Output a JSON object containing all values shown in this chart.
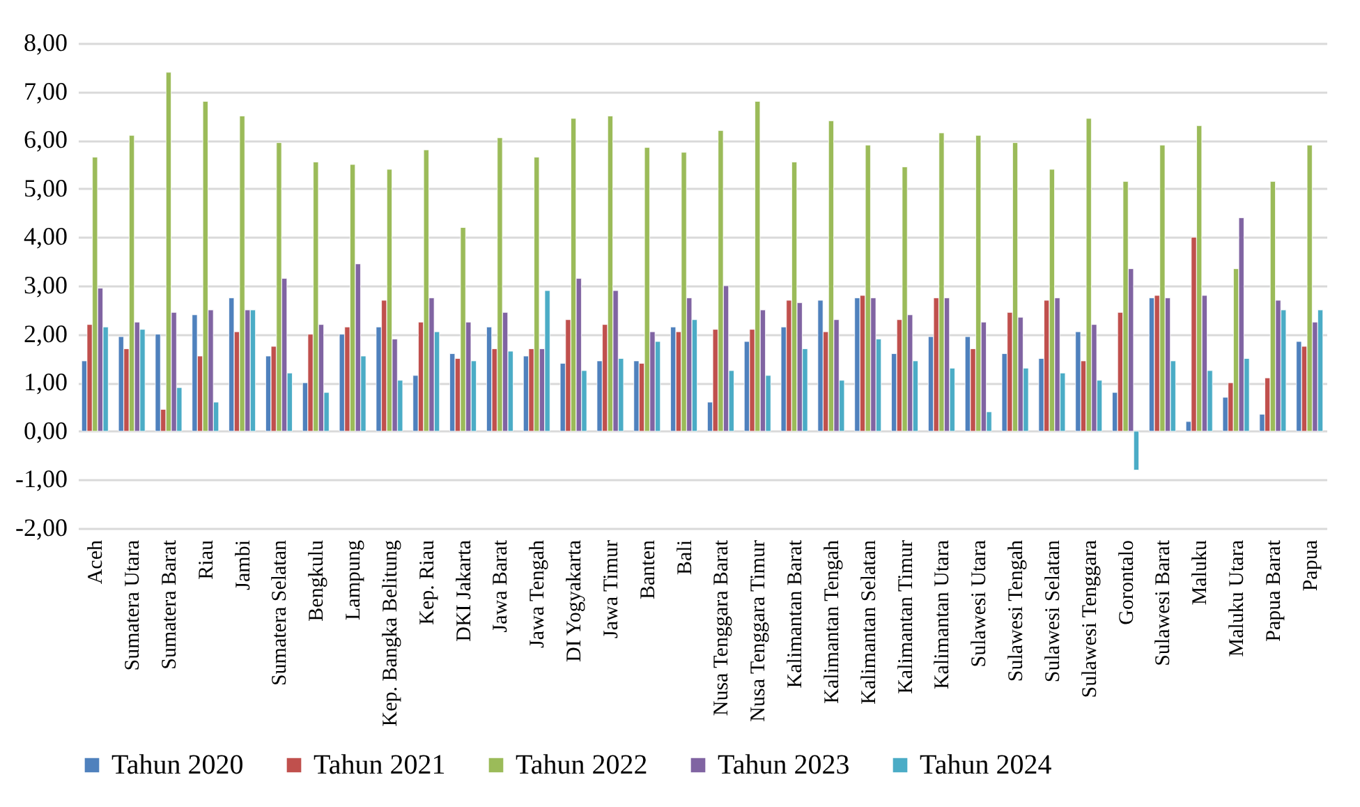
{
  "chart_data": {
    "type": "bar",
    "categories": [
      "Aceh",
      "Sumatera Utara",
      "Sumatera Barat",
      "Riau",
      "Jambi",
      "Sumatera Selatan",
      "Bengkulu",
      "Lampung",
      "Kep. Bangka Belitung",
      "Kep. Riau",
      "DKI Jakarta",
      "Jawa Barat",
      "Jawa Tengah",
      "DI Yogyakarta",
      "Jawa Timur",
      "Banten",
      "Bali",
      "Nusa Tenggara Barat",
      "Nusa Tenggara Timur",
      "Kalimantan Barat",
      "Kalimantan Tengah",
      "Kalimantan Selatan",
      "Kalimantan Timur",
      "Kalimantan Utara",
      "Sulawesi Utara",
      "Sulawesi Tengah",
      "Sulawesi Selatan",
      "Sulawesi Tenggara",
      "Gorontalo",
      "Sulawesi Barat",
      "Maluku",
      "Maluku Utara",
      "Papua Barat",
      "Papua"
    ],
    "series": [
      {
        "name": "Tahun 2020",
        "color": "#4f81bd",
        "values": [
          1.45,
          1.95,
          2.0,
          2.4,
          2.75,
          1.55,
          1.0,
          2.0,
          2.15,
          1.15,
          1.6,
          2.15,
          1.55,
          1.4,
          1.45,
          1.45,
          2.15,
          0.6,
          1.85,
          2.15,
          2.7,
          2.75,
          1.6,
          1.95,
          1.95,
          1.6,
          1.5,
          2.05,
          0.8,
          2.75,
          0.2,
          0.7,
          0.35,
          1.85
        ]
      },
      {
        "name": "Tahun 2021",
        "color": "#c0504d",
        "values": [
          2.2,
          1.7,
          0.45,
          1.55,
          2.05,
          1.75,
          2.0,
          2.15,
          2.7,
          2.25,
          1.5,
          1.7,
          1.7,
          2.3,
          2.2,
          1.4,
          2.05,
          2.1,
          2.1,
          2.7,
          2.05,
          2.8,
          2.3,
          2.75,
          1.7,
          2.45,
          2.7,
          1.45,
          2.45,
          2.8,
          4.0,
          1.0,
          1.1,
          1.75
        ]
      },
      {
        "name": "Tahun 2022",
        "color": "#9bbb59",
        "values": [
          5.65,
          6.1,
          7.4,
          6.8,
          6.5,
          5.95,
          5.55,
          5.5,
          5.4,
          5.8,
          4.2,
          6.05,
          5.65,
          6.45,
          6.5,
          5.85,
          5.75,
          6.2,
          6.8,
          5.55,
          6.4,
          5.9,
          5.45,
          6.15,
          6.1,
          5.95,
          5.4,
          6.45,
          5.15,
          5.9,
          6.3,
          3.35,
          5.15,
          5.9
        ]
      },
      {
        "name": "Tahun 2023",
        "color": "#8064a2",
        "values": [
          2.95,
          2.25,
          2.45,
          2.5,
          2.5,
          3.15,
          2.2,
          3.45,
          1.9,
          2.75,
          2.25,
          2.45,
          1.7,
          3.15,
          2.9,
          2.05,
          2.75,
          3.0,
          2.5,
          2.65,
          2.3,
          2.75,
          2.4,
          2.75,
          2.25,
          2.35,
          2.75,
          2.2,
          3.35,
          2.75,
          2.8,
          4.4,
          2.7,
          2.25
        ]
      },
      {
        "name": "Tahun 2024",
        "color": "#4bacc6",
        "values": [
          2.15,
          2.1,
          0.9,
          0.6,
          2.5,
          1.2,
          0.8,
          1.55,
          1.05,
          2.05,
          1.45,
          1.65,
          2.9,
          1.25,
          1.5,
          1.85,
          2.3,
          1.25,
          1.15,
          1.7,
          1.05,
          1.9,
          1.45,
          1.3,
          0.4,
          1.3,
          1.2,
          1.05,
          -0.8,
          1.45,
          1.25,
          1.5,
          2.5,
          2.5
        ]
      }
    ],
    "ylim": [
      -2,
      8
    ],
    "yticks": [
      {
        "value": -2,
        "label": "-2,00"
      },
      {
        "value": -1,
        "label": "-1,00"
      },
      {
        "value": 0,
        "label": "0,00"
      },
      {
        "value": 1,
        "label": "1,00"
      },
      {
        "value": 2,
        "label": "2,00"
      },
      {
        "value": 3,
        "label": "3,00"
      },
      {
        "value": 4,
        "label": "4,00"
      },
      {
        "value": 5,
        "label": "5,00"
      },
      {
        "value": 6,
        "label": "6,00"
      },
      {
        "value": 7,
        "label": "7,00"
      },
      {
        "value": 8,
        "label": "8,00"
      }
    ],
    "grid": "y",
    "legend": "bottom"
  }
}
